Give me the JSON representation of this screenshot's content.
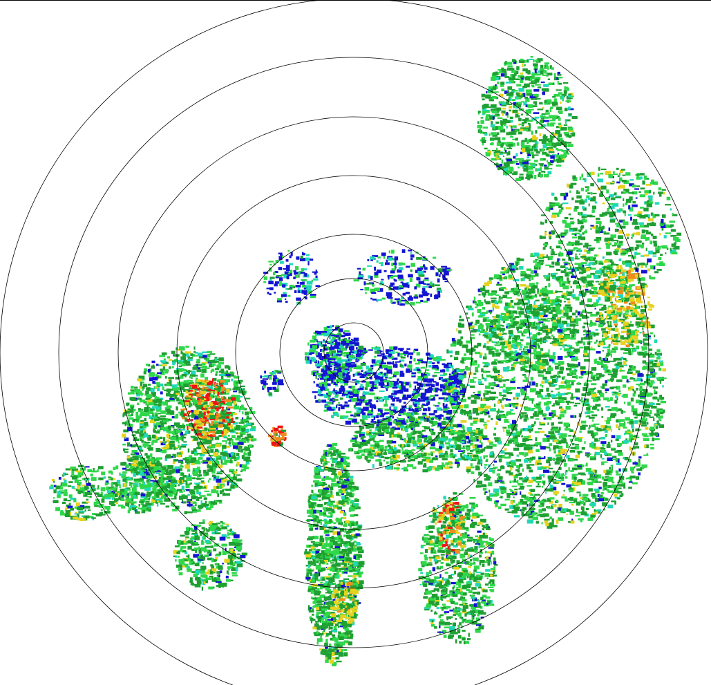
{
  "radar": {
    "type": "ppi-reflectivity",
    "range_rings": 7,
    "palette": {
      "weak_blue": "#1414d2",
      "cyan": "#20d8b8",
      "light_green": "#2ed84a",
      "green": "#1ea032",
      "yellow": "#e6d21e",
      "orange": "#f08c1e",
      "red": "#f01414"
    },
    "ring_color": "#000000",
    "background": "#ffffff"
  }
}
